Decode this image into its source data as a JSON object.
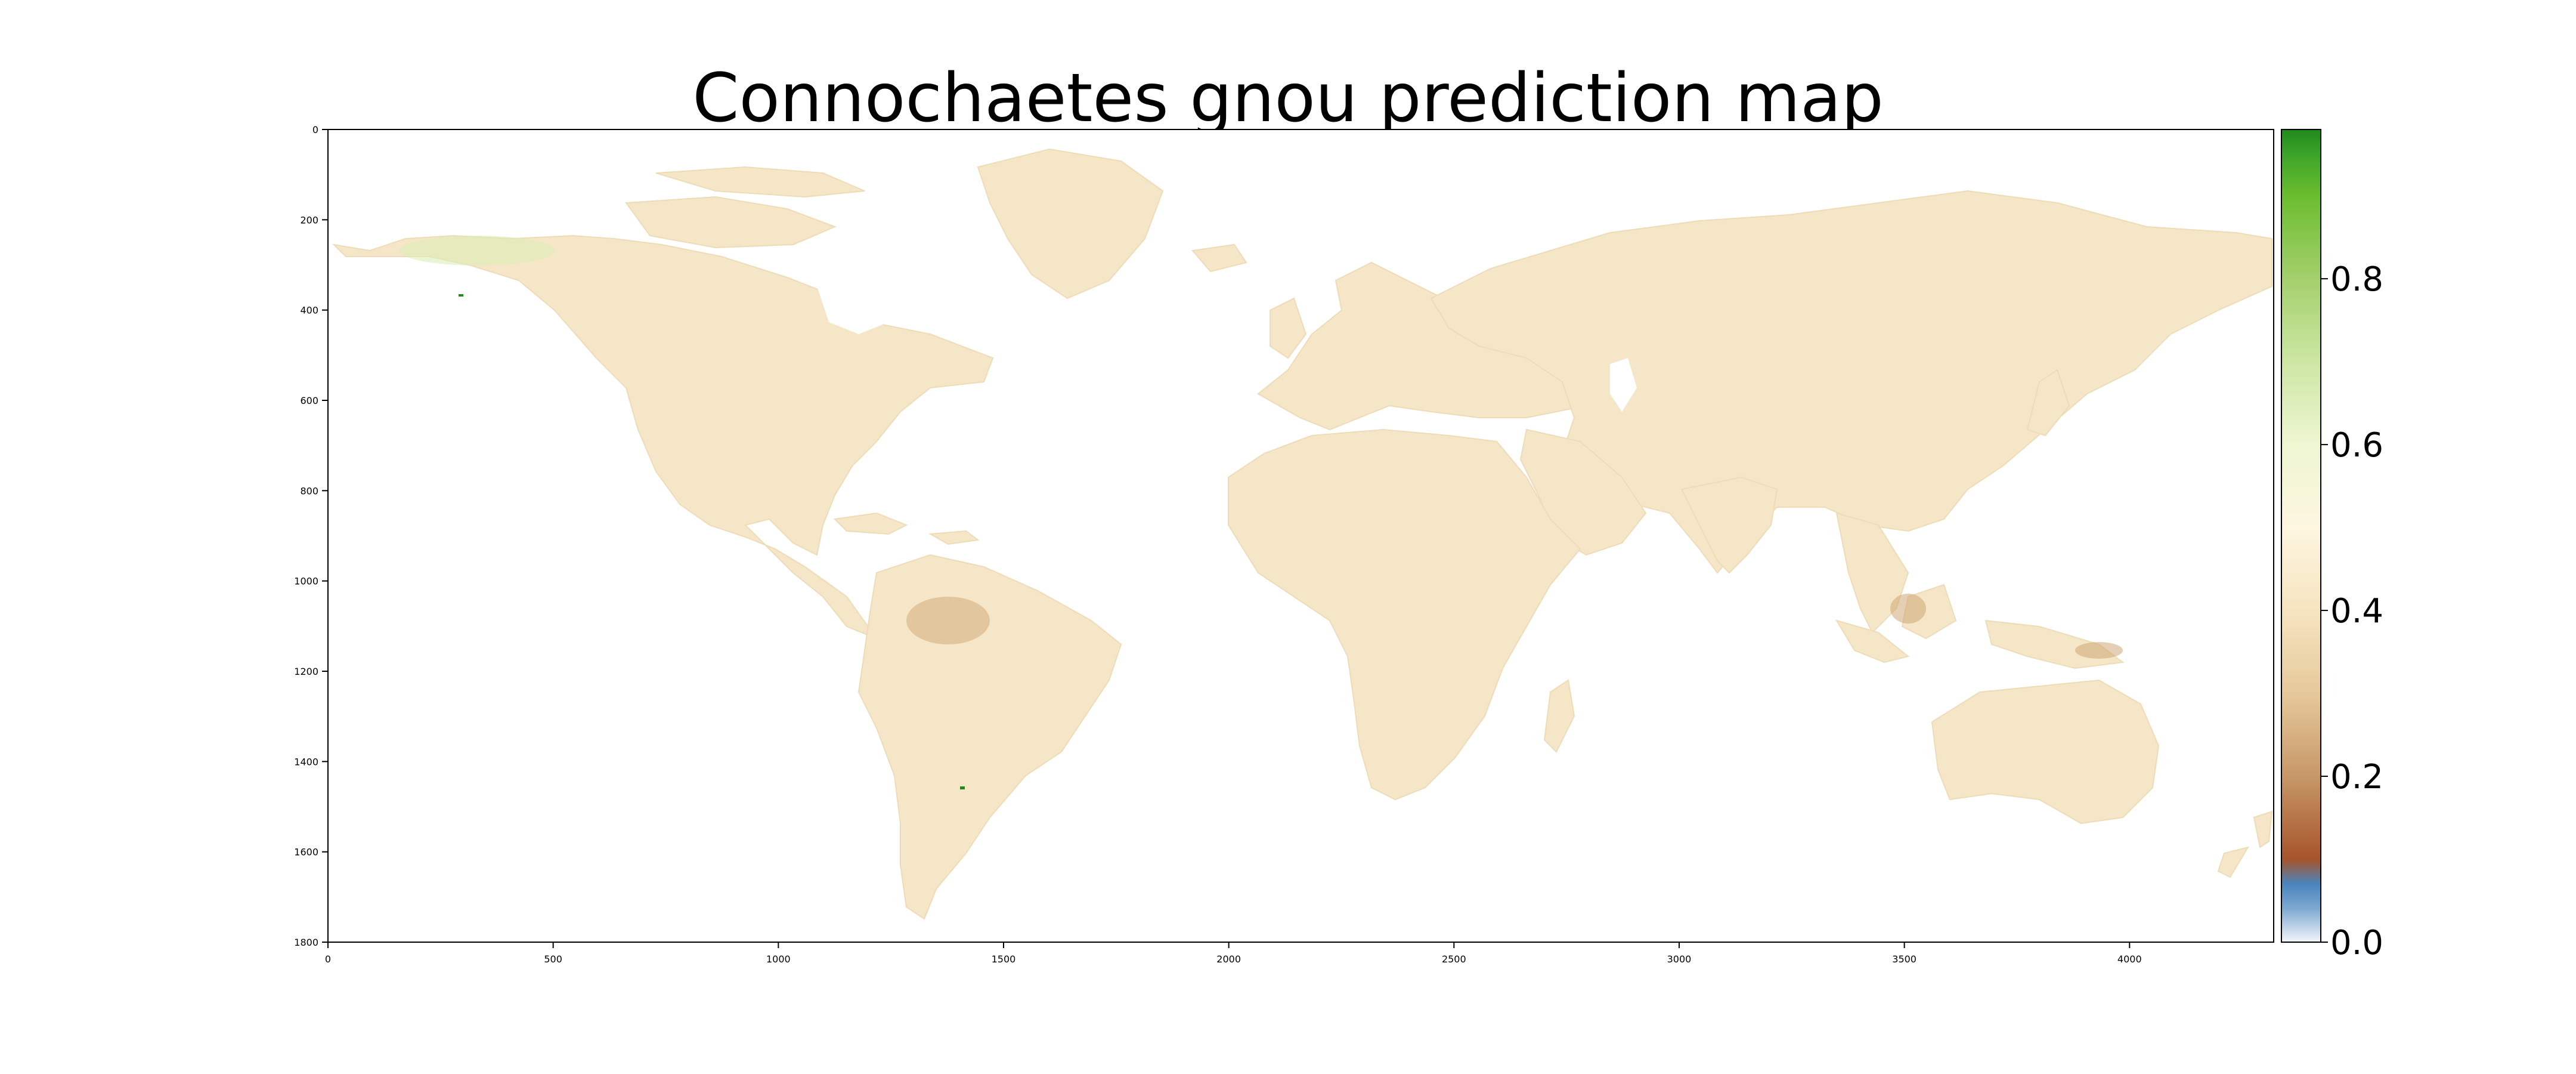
{
  "title": "Connochaetes gnou prediction map",
  "map": {
    "x_ticks": [
      "0",
      "500",
      "1000",
      "1500",
      "2000",
      "2500",
      "3000",
      "3500",
      "4000"
    ],
    "y_ticks": [
      "0",
      "200",
      "400",
      "600",
      "800",
      "1000",
      "1200",
      "1400",
      "1600",
      "1800"
    ],
    "x_range": [
      0,
      4320
    ],
    "y_range": [
      0,
      1800
    ],
    "land_color": "#f5e6c8",
    "low_color": "#c9a06a",
    "high_color": "#d8ecb4",
    "colorbar": {
      "ticks": [
        "0.0",
        "0.2",
        "0.4",
        "0.6",
        "0.8"
      ],
      "range": [
        0,
        0.98
      ],
      "stops": [
        {
          "v": 0.0,
          "color": "#f3f5fa"
        },
        {
          "v": 0.04,
          "color": "#7fa9d1"
        },
        {
          "v": 0.07,
          "color": "#4a85bd"
        },
        {
          "v": 0.1,
          "color": "#a6542a"
        },
        {
          "v": 0.2,
          "color": "#c79868"
        },
        {
          "v": 0.3,
          "color": "#e6c99b"
        },
        {
          "v": 0.4,
          "color": "#f6e4c0"
        },
        {
          "v": 0.5,
          "color": "#fdf6e0"
        },
        {
          "v": 0.6,
          "color": "#eef6d2"
        },
        {
          "v": 0.7,
          "color": "#cde6a4"
        },
        {
          "v": 0.8,
          "color": "#a4d06c"
        },
        {
          "v": 0.9,
          "color": "#6bbd2f"
        },
        {
          "v": 0.95,
          "color": "#3ca42a"
        },
        {
          "v": 0.98,
          "color": "#1f8a1c"
        }
      ]
    }
  }
}
